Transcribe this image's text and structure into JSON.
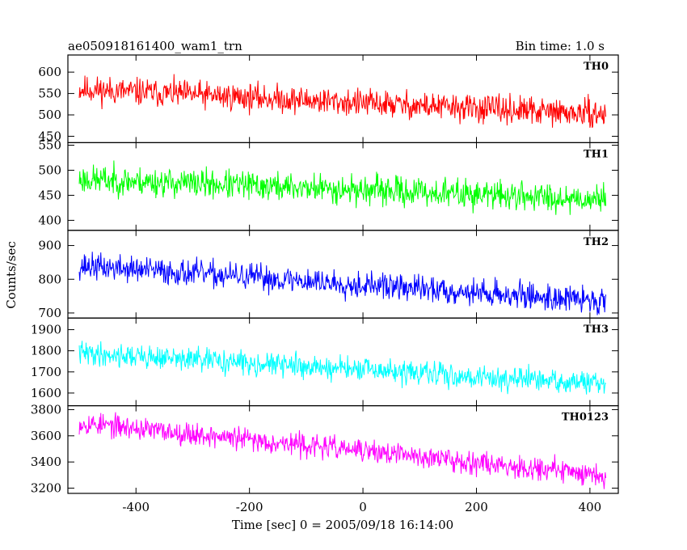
{
  "header": {
    "title": "ae050918161400_wam1_trn",
    "bin_time": "Bin time: 1.0 s"
  },
  "chart_data": {
    "type": "line",
    "xlabel": "Time [sec] 0 = 2005/09/18 16:14:00",
    "ylabel": "Counts/sec",
    "xlim": [
      -520,
      450
    ],
    "x_ticks": [
      -400,
      -200,
      0,
      200,
      400
    ],
    "x_range": [
      -500,
      428
    ],
    "bin_time_s": 1.0,
    "grid": false,
    "legend": "none",
    "series": [
      {
        "name": "TH0",
        "color": "#ff0000",
        "ylim": [
          435,
          640
        ],
        "y_ticks": [
          450,
          500,
          550,
          600
        ],
        "y_start": 560,
        "y_end": 500,
        "noise": 28,
        "y_min": 470,
        "y_max": 640,
        "seed": 11
      },
      {
        "name": "TH1",
        "color": "#00ff00",
        "ylim": [
          380,
          555
        ],
        "y_ticks": [
          400,
          450,
          500,
          550
        ],
        "y_start": 482,
        "y_end": 442,
        "noise": 25,
        "y_min": 383,
        "y_max": 553,
        "seed": 23
      },
      {
        "name": "TH2",
        "color": "#0000ff",
        "ylim": [
          685,
          945
        ],
        "y_ticks": [
          700,
          800,
          900
        ],
        "y_start": 840,
        "y_end": 735,
        "noise": 34,
        "y_min": 690,
        "y_max": 940,
        "seed": 37
      },
      {
        "name": "TH3",
        "color": "#00ffff",
        "ylim": [
          1540,
          1955
        ],
        "y_ticks": [
          1600,
          1700,
          1800,
          1900
        ],
        "y_start": 1790,
        "y_end": 1640,
        "noise": 48,
        "y_min": 1545,
        "y_max": 1950,
        "seed": 41
      },
      {
        "name": "TH0123",
        "color": "#ff00ff",
        "ylim": [
          3160,
          3830
        ],
        "y_ticks": [
          3200,
          3400,
          3600,
          3800
        ],
        "y_start": 3700,
        "y_end": 3300,
        "noise": 75,
        "y_min": 3170,
        "y_max": 3830,
        "seed": 53
      }
    ]
  }
}
